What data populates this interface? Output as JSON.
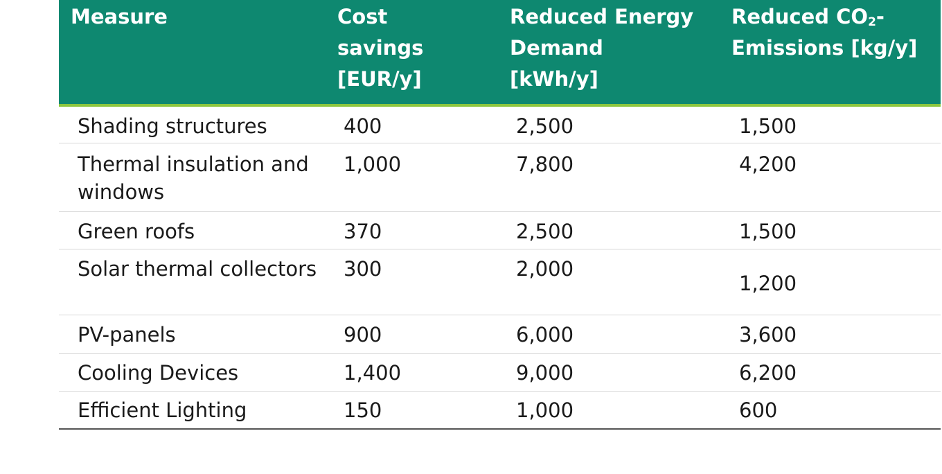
{
  "table": {
    "headers": {
      "measure": "Measure",
      "cost": [
        "Cost",
        "savings",
        "[EUR/y]"
      ],
      "energy": [
        "Reduced Energy",
        "Demand",
        "[kWh/y]"
      ],
      "co2_line1_pre": "Reduced CO",
      "co2_line1_sub": "2",
      "co2_line1_post": "-",
      "co2_line2": "Emissions [kg/y]"
    },
    "rows": [
      {
        "measure": "Shading structures",
        "cost": "400",
        "energy": "2,500",
        "co2": "1,500"
      },
      {
        "measure": "Thermal insulation and windows",
        "cost": "1,000",
        "energy": "7,800",
        "co2": "4,200"
      },
      {
        "measure": "Green roofs",
        "cost": "370",
        "energy": "2,500",
        "co2": "1,500"
      },
      {
        "measure": "Solar thermal collectors",
        "cost": "300",
        "energy": "2,000",
        "co2": "1,200"
      },
      {
        "measure": "PV-panels",
        "cost": "900",
        "energy": "6,000",
        "co2": "3,600"
      },
      {
        "measure": "Cooling Devices",
        "cost": "1,400",
        "energy": "9,000",
        "co2": "6,200"
      },
      {
        "measure": "Efficient Lighting",
        "cost": "150",
        "energy": "1,000",
        "co2": "600"
      }
    ]
  }
}
